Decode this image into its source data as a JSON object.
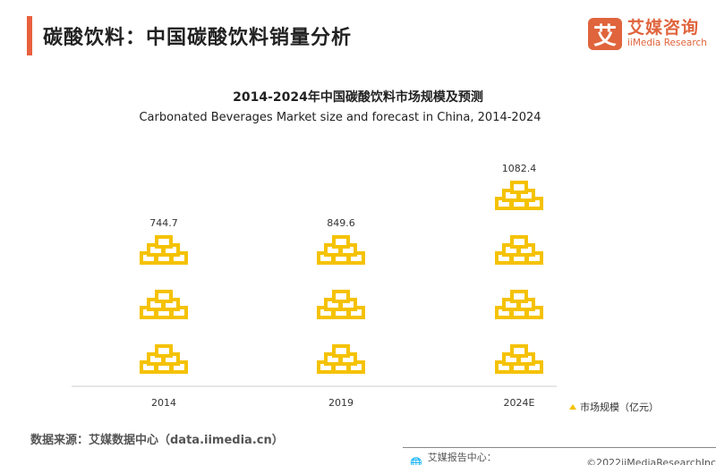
{
  "header": {
    "title": "碳酸饮料：中国碳酸饮料销量分析",
    "logo_cn": "艾媒咨询",
    "logo_en": "iiMedia Research",
    "logo_mark": "艾"
  },
  "chart_data": {
    "type": "pictogram-bar",
    "title": "2014-2024年中国碳酸饮料市场规模及预测",
    "subtitle": "Carbonated Beverages Market size and forecast in China, 2014-2024",
    "categories": [
      "2014",
      "2019",
      "2024E"
    ],
    "series": [
      {
        "name": "市场规模（亿元）",
        "values": [
          744.7,
          849.6,
          1082.4
        ]
      }
    ],
    "data_labels": [
      "744.7",
      "849.6",
      "1082.4"
    ],
    "icon": "gold-bars-icon",
    "color": "#F5C200",
    "legend_position": "bottom-right",
    "grid": false
  },
  "footer": {
    "source": "数据来源：艾媒数据中心（data.iimedia.cn）",
    "report": "艾媒报告中心：report.iimedia.cn",
    "copyright": "©2022iiMediaResearchInc"
  }
}
